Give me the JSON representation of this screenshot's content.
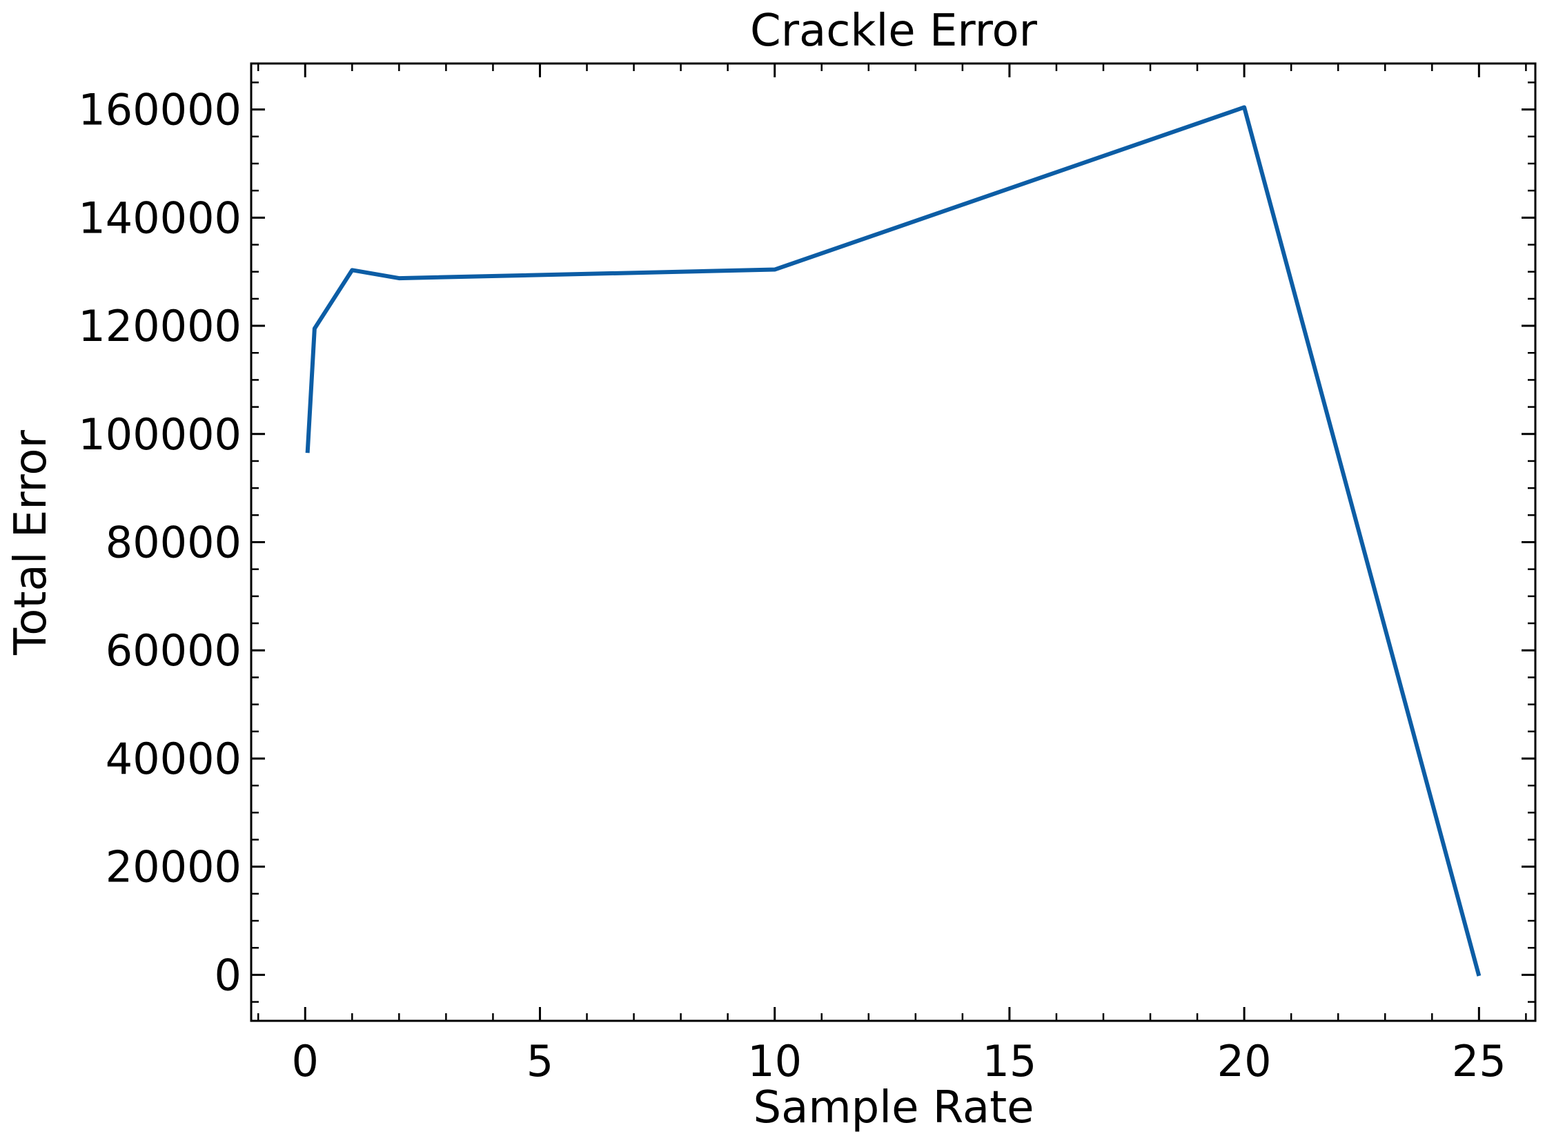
{
  "chart_data": {
    "type": "line",
    "title": "Crackle Error",
    "xlabel": "Sample Rate",
    "ylabel": "Total Error",
    "xlim": [
      -1.15,
      26.2
    ],
    "ylim": [
      -8500,
      168500
    ],
    "x_ticks": [
      0,
      5,
      10,
      15,
      20,
      25
    ],
    "x_tick_labels": [
      "0",
      "5",
      "10",
      "15",
      "20",
      "25"
    ],
    "x_minor_step": 1,
    "y_ticks": [
      0,
      20000,
      40000,
      60000,
      80000,
      100000,
      120000,
      140000,
      160000
    ],
    "y_tick_labels": [
      "0",
      "20000",
      "40000",
      "60000",
      "80000",
      "100000",
      "120000",
      "140000",
      "160000"
    ],
    "y_minor_step": 5000,
    "grid": false,
    "series": [
      {
        "color": "#0c5da5",
        "x": [
          0.05,
          0.2,
          1,
          2,
          10,
          20,
          25
        ],
        "y": [
          96500,
          119500,
          130300,
          128800,
          130400,
          160400,
          -200
        ]
      }
    ]
  }
}
